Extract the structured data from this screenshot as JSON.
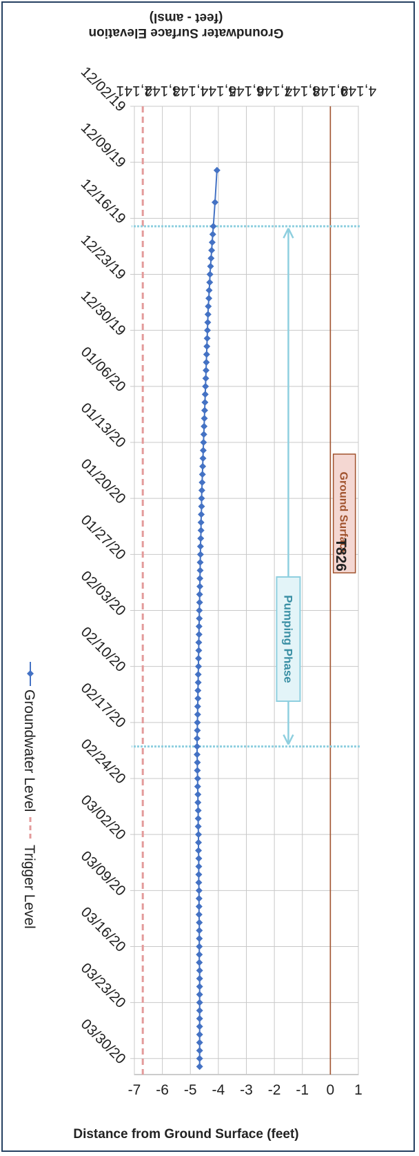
{
  "chart_data": {
    "type": "line",
    "title": "T826",
    "xlabel": "",
    "ylabel": "Distance from Ground Surface (feet)",
    "y2label_line1": "Groundwater Surface Elevation",
    "y2label_line2": "(feet - amsl)",
    "x_tick_labels": [
      "12/02/19",
      "12/09/19",
      "12/16/19",
      "12/23/19",
      "12/30/19",
      "01/06/20",
      "01/13/20",
      "01/20/20",
      "01/27/20",
      "02/03/20",
      "02/10/20",
      "02/17/20",
      "02/24/20",
      "03/02/20",
      "03/09/20",
      "03/16/20",
      "03/23/20",
      "03/30/20"
    ],
    "xlim": [
      "2019-12-02",
      "2020-04-01"
    ],
    "ylim": [
      -7,
      1
    ],
    "y_ticks": [
      1,
      0,
      -1,
      -2,
      -3,
      -4,
      -5,
      -6,
      -7
    ],
    "y_tick_labels": [
      "1",
      "0",
      "-1",
      "-2",
      "-3",
      "-4",
      "-5",
      "-6",
      "-7"
    ],
    "y2_ticks": [
      4149,
      4148,
      4147,
      4146,
      4145,
      4144,
      4143,
      4142,
      4141
    ],
    "y2_tick_labels": [
      "4,149",
      "4,148",
      "4,147",
      "4,146",
      "4,145",
      "4,144",
      "4,143",
      "4,142",
      "4,141"
    ],
    "grid": true,
    "legend_position": "bottom",
    "ground_surface_level": 0,
    "trigger_level": -6.7,
    "pumping_phase": {
      "start": "2019-12-17",
      "end": "2020-02-20"
    },
    "annotations": {
      "ground_surface": "Ground Surface",
      "pumping_phase": "Pumping Phase"
    },
    "series": [
      {
        "name": "Groundwater Level",
        "color": "#4472c4",
        "points": [
          [
            "2019-12-10",
            -4.05
          ],
          [
            "2019-12-14",
            -4.12
          ],
          [
            "2019-12-17",
            -4.18
          ],
          [
            "2019-12-18",
            -4.2
          ],
          [
            "2019-12-19",
            -4.22
          ],
          [
            "2019-12-20",
            -4.24
          ],
          [
            "2019-12-21",
            -4.26
          ],
          [
            "2019-12-22",
            -4.28
          ],
          [
            "2019-12-23",
            -4.3
          ],
          [
            "2019-12-24",
            -4.31
          ],
          [
            "2019-12-25",
            -4.33
          ],
          [
            "2019-12-26",
            -4.34
          ],
          [
            "2019-12-27",
            -4.36
          ],
          [
            "2019-12-28",
            -4.37
          ],
          [
            "2019-12-29",
            -4.38
          ],
          [
            "2019-12-30",
            -4.39
          ],
          [
            "2019-12-31",
            -4.4
          ],
          [
            "2020-01-01",
            -4.41
          ],
          [
            "2020-01-02",
            -4.42
          ],
          [
            "2020-01-03",
            -4.43
          ],
          [
            "2020-01-04",
            -4.44
          ],
          [
            "2020-01-05",
            -4.45
          ],
          [
            "2020-01-06",
            -4.46
          ],
          [
            "2020-01-07",
            -4.47
          ],
          [
            "2020-01-08",
            -4.48
          ],
          [
            "2020-01-09",
            -4.49
          ],
          [
            "2020-01-10",
            -4.5
          ],
          [
            "2020-01-11",
            -4.51
          ],
          [
            "2020-01-12",
            -4.52
          ],
          [
            "2020-01-13",
            -4.53
          ],
          [
            "2020-01-14",
            -4.54
          ],
          [
            "2020-01-15",
            -4.55
          ],
          [
            "2020-01-16",
            -4.56
          ],
          [
            "2020-01-17",
            -4.57
          ],
          [
            "2020-01-18",
            -4.58
          ],
          [
            "2020-01-19",
            -4.59
          ],
          [
            "2020-01-20",
            -4.6
          ],
          [
            "2020-01-21",
            -4.6
          ],
          [
            "2020-01-22",
            -4.61
          ],
          [
            "2020-01-23",
            -4.62
          ],
          [
            "2020-01-24",
            -4.62
          ],
          [
            "2020-01-25",
            -4.63
          ],
          [
            "2020-01-26",
            -4.64
          ],
          [
            "2020-01-27",
            -4.64
          ],
          [
            "2020-01-28",
            -4.65
          ],
          [
            "2020-01-29",
            -4.65
          ],
          [
            "2020-01-30",
            -4.66
          ],
          [
            "2020-01-31",
            -4.66
          ],
          [
            "2020-02-01",
            -4.67
          ],
          [
            "2020-02-02",
            -4.67
          ],
          [
            "2020-02-03",
            -4.68
          ],
          [
            "2020-02-04",
            -4.68
          ],
          [
            "2020-02-05",
            -4.69
          ],
          [
            "2020-02-06",
            -4.69
          ],
          [
            "2020-02-07",
            -4.7
          ],
          [
            "2020-02-08",
            -4.7
          ],
          [
            "2020-02-09",
            -4.71
          ],
          [
            "2020-02-10",
            -4.71
          ],
          [
            "2020-02-11",
            -4.72
          ],
          [
            "2020-02-12",
            -4.72
          ],
          [
            "2020-02-13",
            -4.73
          ],
          [
            "2020-02-14",
            -4.73
          ],
          [
            "2020-02-15",
            -4.74
          ],
          [
            "2020-02-16",
            -4.74
          ],
          [
            "2020-02-17",
            -4.75
          ],
          [
            "2020-02-18",
            -4.75
          ],
          [
            "2020-02-19",
            -4.76
          ],
          [
            "2020-02-20",
            -4.76
          ],
          [
            "2020-02-21",
            -4.76
          ],
          [
            "2020-02-22",
            -4.75
          ],
          [
            "2020-02-23",
            -4.75
          ],
          [
            "2020-02-24",
            -4.74
          ],
          [
            "2020-02-25",
            -4.74
          ],
          [
            "2020-02-26",
            -4.73
          ],
          [
            "2020-02-27",
            -4.73
          ],
          [
            "2020-02-28",
            -4.72
          ],
          [
            "2020-02-29",
            -4.72
          ],
          [
            "2020-03-01",
            -4.72
          ],
          [
            "2020-03-02",
            -4.71
          ],
          [
            "2020-03-03",
            -4.71
          ],
          [
            "2020-03-04",
            -4.71
          ],
          [
            "2020-03-05",
            -4.7
          ],
          [
            "2020-03-06",
            -4.7
          ],
          [
            "2020-03-07",
            -4.7
          ],
          [
            "2020-03-08",
            -4.7
          ],
          [
            "2020-03-09",
            -4.69
          ],
          [
            "2020-03-10",
            -4.69
          ],
          [
            "2020-03-11",
            -4.69
          ],
          [
            "2020-03-12",
            -4.69
          ],
          [
            "2020-03-13",
            -4.68
          ],
          [
            "2020-03-14",
            -4.68
          ],
          [
            "2020-03-15",
            -4.68
          ],
          [
            "2020-03-16",
            -4.68
          ],
          [
            "2020-03-17",
            -4.68
          ],
          [
            "2020-03-18",
            -4.68
          ],
          [
            "2020-03-19",
            -4.67
          ],
          [
            "2020-03-20",
            -4.67
          ],
          [
            "2020-03-21",
            -4.67
          ],
          [
            "2020-03-22",
            -4.67
          ],
          [
            "2020-03-23",
            -4.67
          ],
          [
            "2020-03-24",
            -4.67
          ],
          [
            "2020-03-25",
            -4.67
          ],
          [
            "2020-03-26",
            -4.67
          ],
          [
            "2020-03-27",
            -4.67
          ],
          [
            "2020-03-28",
            -4.67
          ],
          [
            "2020-03-29",
            -4.67
          ],
          [
            "2020-03-30",
            -4.67
          ],
          [
            "2020-03-31",
            -4.67
          ]
        ]
      },
      {
        "name": "Trigger Level",
        "color": "#e39a9a",
        "style": "dashed",
        "value": -6.7
      }
    ]
  },
  "colors": {
    "ground_surface": "#a0522d",
    "pumping_phase": "#8ecfdf",
    "grid": "#c8c8c8"
  }
}
